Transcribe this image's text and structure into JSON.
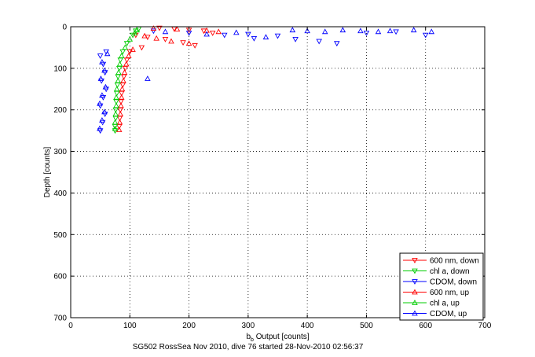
{
  "chart_data": {
    "type": "scatter",
    "title": "",
    "xlabel_main": "b",
    "xlabel_sub": "b",
    "xlabel_rest": " Output [counts]",
    "ylabel": "Depth [counts]",
    "caption": "SG502 RossSea Nov 2010, dive 76 started 28-Nov-2010 02:56:37",
    "xlim": [
      0,
      700
    ],
    "ylim": [
      0,
      700
    ],
    "y_reversed": true,
    "grid": "dotted",
    "legend_placement": "bottom-right",
    "x_ticks": [
      0,
      100,
      200,
      300,
      400,
      500,
      600,
      700
    ],
    "y_ticks": [
      0,
      100,
      200,
      300,
      400,
      500,
      600,
      700
    ],
    "series": [
      {
        "name": "600 nm, down",
        "color": "#ff0000",
        "marker": "triangle-down",
        "points": [
          [
            150,
            3
          ],
          [
            175,
            5
          ],
          [
            200,
            8
          ],
          [
            225,
            10
          ],
          [
            240,
            15
          ],
          [
            110,
            20
          ],
          [
            130,
            25
          ],
          [
            160,
            30
          ],
          [
            190,
            38
          ],
          [
            210,
            45
          ],
          [
            120,
            50
          ],
          [
            100,
            60
          ],
          [
            95,
            80
          ],
          [
            92,
            100
          ],
          [
            90,
            120
          ],
          [
            88,
            140
          ],
          [
            86,
            160
          ],
          [
            85,
            180
          ],
          [
            84,
            200
          ],
          [
            83,
            220
          ],
          [
            82,
            240
          ]
        ]
      },
      {
        "name": "chl a, down",
        "color": "#00cc00",
        "marker": "triangle-down",
        "points": [
          [
            115,
            5
          ],
          [
            110,
            10
          ],
          [
            105,
            20
          ],
          [
            95,
            40
          ],
          [
            88,
            60
          ],
          [
            84,
            80
          ],
          [
            82,
            100
          ],
          [
            80,
            120
          ],
          [
            79,
            140
          ],
          [
            78,
            160
          ],
          [
            77,
            180
          ],
          [
            76,
            200
          ],
          [
            76,
            220
          ],
          [
            75,
            240
          ],
          [
            75,
            250
          ]
        ]
      },
      {
        "name": "CDOM, down",
        "color": "#0000ff",
        "marker": "triangle-down",
        "points": [
          [
            140,
            10
          ],
          [
            200,
            15
          ],
          [
            260,
            20
          ],
          [
            300,
            18
          ],
          [
            350,
            22
          ],
          [
            310,
            28
          ],
          [
            380,
            30
          ],
          [
            420,
            35
          ],
          [
            450,
            40
          ],
          [
            500,
            15
          ],
          [
            550,
            12
          ],
          [
            600,
            20
          ],
          [
            60,
            60
          ],
          [
            50,
            70
          ],
          [
            55,
            90
          ],
          [
            58,
            110
          ],
          [
            52,
            130
          ],
          [
            60,
            150
          ],
          [
            55,
            170
          ],
          [
            50,
            190
          ],
          [
            58,
            210
          ],
          [
            54,
            230
          ],
          [
            50,
            250
          ]
        ]
      },
      {
        "name": "600 nm, up",
        "color": "#ff0000",
        "marker": "triangle-up",
        "points": [
          [
            140,
            4
          ],
          [
            180,
            6
          ],
          [
            230,
            9
          ],
          [
            250,
            12
          ],
          [
            125,
            22
          ],
          [
            145,
            28
          ],
          [
            170,
            35
          ],
          [
            200,
            40
          ],
          [
            105,
            55
          ],
          [
            98,
            70
          ],
          [
            94,
            90
          ],
          [
            91,
            110
          ],
          [
            89,
            130
          ],
          [
            87,
            150
          ],
          [
            86,
            170
          ],
          [
            85,
            190
          ],
          [
            84,
            210
          ],
          [
            83,
            230
          ],
          [
            82,
            248
          ]
        ]
      },
      {
        "name": "chl a, up",
        "color": "#00cc00",
        "marker": "triangle-up",
        "points": [
          [
            112,
            8
          ],
          [
            108,
            15
          ],
          [
            100,
            30
          ],
          [
            92,
            50
          ],
          [
            86,
            70
          ],
          [
            83,
            90
          ],
          [
            81,
            110
          ],
          [
            80,
            130
          ],
          [
            78,
            150
          ],
          [
            77,
            170
          ],
          [
            77,
            190
          ],
          [
            76,
            210
          ],
          [
            75,
            230
          ],
          [
            75,
            245
          ]
        ]
      },
      {
        "name": "CDOM, up",
        "color": "#0000ff",
        "marker": "triangle-up",
        "points": [
          [
            160,
            12
          ],
          [
            230,
            18
          ],
          [
            280,
            14
          ],
          [
            330,
            25
          ],
          [
            375,
            8
          ],
          [
            400,
            10
          ],
          [
            430,
            12
          ],
          [
            460,
            8
          ],
          [
            490,
            10
          ],
          [
            520,
            12
          ],
          [
            540,
            10
          ],
          [
            580,
            8
          ],
          [
            610,
            12
          ],
          [
            130,
            125
          ],
          [
            62,
            65
          ],
          [
            53,
            85
          ],
          [
            57,
            105
          ],
          [
            51,
            125
          ],
          [
            59,
            145
          ],
          [
            53,
            165
          ],
          [
            49,
            185
          ],
          [
            57,
            205
          ],
          [
            53,
            225
          ],
          [
            49,
            245
          ]
        ]
      }
    ]
  }
}
